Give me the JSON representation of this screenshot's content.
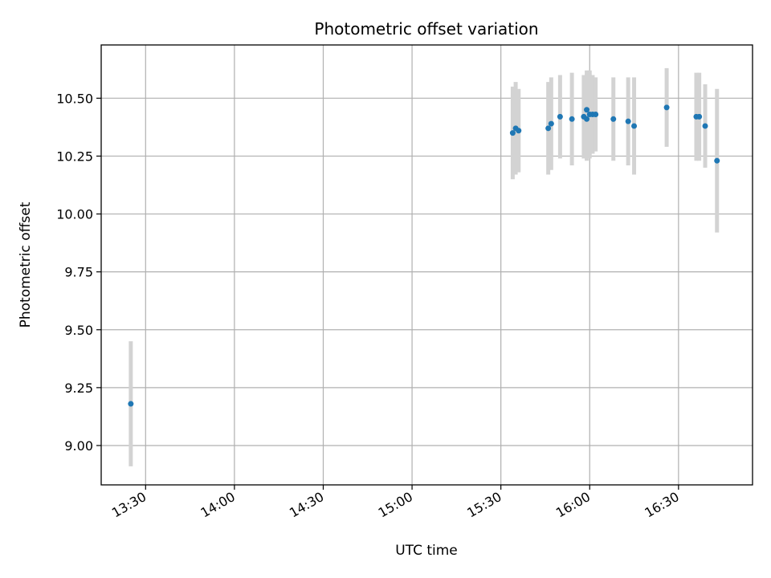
{
  "chart_data": {
    "type": "scatter",
    "title": "Photometric offset variation",
    "xlabel": "UTC time",
    "ylabel": "Photometric offset",
    "x_tick_labels": [
      "13:30",
      "14:00",
      "14:30",
      "15:00",
      "15:30",
      "16:00",
      "16:30"
    ],
    "y_tick_labels": [
      "9.00",
      "9.25",
      "9.50",
      "9.75",
      "10.00",
      "10.25",
      "10.50"
    ],
    "xlim": [
      "13:15",
      "16:55"
    ],
    "ylim": [
      8.83,
      10.73
    ],
    "grid": true,
    "legend": "none",
    "colors": {
      "point": "#1f77b4",
      "error_bar": "#d3d3d3",
      "grid": "#b0b0b0"
    },
    "points": [
      {
        "x": "13:25",
        "y": 9.18,
        "yerr": 0.27
      },
      {
        "x": "15:34",
        "y": 10.35,
        "yerr": 0.2
      },
      {
        "x": "15:35",
        "y": 10.37,
        "yerr": 0.2
      },
      {
        "x": "15:36",
        "y": 10.36,
        "yerr": 0.18
      },
      {
        "x": "15:46",
        "y": 10.37,
        "yerr": 0.2
      },
      {
        "x": "15:47",
        "y": 10.39,
        "yerr": 0.2
      },
      {
        "x": "15:50",
        "y": 10.42,
        "yerr": 0.18
      },
      {
        "x": "15:54",
        "y": 10.41,
        "yerr": 0.2
      },
      {
        "x": "15:58",
        "y": 10.42,
        "yerr": 0.18
      },
      {
        "x": "15:59",
        "y": 10.41,
        "yerr": 0.18
      },
      {
        "x": "15:59",
        "y": 10.45,
        "yerr": 0.17
      },
      {
        "x": "16:00",
        "y": 10.43,
        "yerr": 0.19
      },
      {
        "x": "16:01",
        "y": 10.43,
        "yerr": 0.17
      },
      {
        "x": "16:02",
        "y": 10.43,
        "yerr": 0.16
      },
      {
        "x": "16:08",
        "y": 10.41,
        "yerr": 0.18
      },
      {
        "x": "16:13",
        "y": 10.4,
        "yerr": 0.19
      },
      {
        "x": "16:15",
        "y": 10.38,
        "yerr": 0.21
      },
      {
        "x": "16:26",
        "y": 10.46,
        "yerr": 0.17
      },
      {
        "x": "16:36",
        "y": 10.42,
        "yerr": 0.19
      },
      {
        "x": "16:37",
        "y": 10.42,
        "yerr": 0.19
      },
      {
        "x": "16:39",
        "y": 10.38,
        "yerr": 0.18
      },
      {
        "x": "16:43",
        "y": 10.23,
        "yerr": 0.31
      }
    ]
  }
}
